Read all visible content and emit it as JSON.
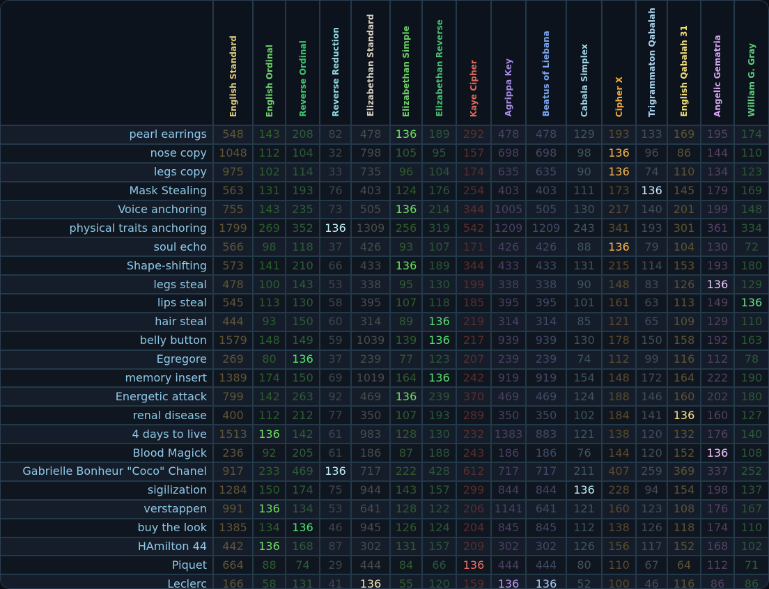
{
  "columns": [
    {
      "label": "English Standard",
      "color": "#d8c77a"
    },
    {
      "label": "English Ordinal",
      "color": "#6fd06a"
    },
    {
      "label": "Reverse Ordinal",
      "color": "#3fc56d"
    },
    {
      "label": "Reverse Reduction",
      "color": "#8fd8e3"
    },
    {
      "label": "Elizabethan Standard",
      "color": "#d9d2c2"
    },
    {
      "label": "Elizabethan Simple",
      "color": "#6ad066"
    },
    {
      "label": "Elizabethan Reverse",
      "color": "#48c070"
    },
    {
      "label": "Kaye Cipher",
      "color": "#e06a5c"
    },
    {
      "label": "Agrippa Key",
      "color": "#a58ae6"
    },
    {
      "label": "Beatus of Liebana",
      "color": "#7aa6f0"
    },
    {
      "label": "Cabala Simplex",
      "color": "#9fd3e3"
    },
    {
      "label": "Cipher X",
      "color": "#f0a93a"
    },
    {
      "label": "Trigrammaton Qabalah",
      "color": "#a8d3ee"
    },
    {
      "label": "English Qabalah 31",
      "color": "#f0dc7a"
    },
    {
      "label": "Angelic Gematria",
      "color": "#d4a3f0"
    },
    {
      "label": "William G. Gray",
      "color": "#5ed07a"
    }
  ],
  "dim_colors": [
    "#5f5536",
    "#2d5d2e",
    "#2f5b39",
    "#3b4650",
    "#4a4b4c",
    "#315b2d",
    "#2b5638",
    "#5a2d2d",
    "#4a3f62",
    "#414a66",
    "#3f555d",
    "#5d4a2c",
    "#414d59",
    "#5c5332",
    "#534162",
    "#2d5836"
  ],
  "highlight_colors": [
    "#d8c77a",
    "#6ee05f",
    "#4ee66c",
    "#bdeff5",
    "#f5e6b5",
    "#6ee05f",
    "#56e071",
    "#f06e62",
    "#c29bf7",
    "#b1cdfa",
    "#c0f2fa",
    "#ffb648",
    "#c6ecff",
    "#ffe58f",
    "#f0c4ff",
    "#6ee58a"
  ],
  "rows": [
    {
      "label": "pearl earrings",
      "values": [
        "548",
        "143",
        "208",
        "82",
        "478",
        "136",
        "189",
        "292",
        "478",
        "478",
        "129",
        "193",
        "133",
        "169",
        "195",
        "174"
      ]
    },
    {
      "label": "nose copy",
      "values": [
        "1048",
        "112",
        "104",
        "32",
        "798",
        "105",
        "95",
        "157",
        "698",
        "698",
        "98",
        "136",
        "96",
        "86",
        "144",
        "110"
      ]
    },
    {
      "label": "legs copy",
      "values": [
        "975",
        "102",
        "114",
        "33",
        "735",
        "96",
        "104",
        "174",
        "635",
        "635",
        "90",
        "136",
        "74",
        "110",
        "134",
        "123"
      ]
    },
    {
      "label": "Mask Stealing",
      "values": [
        "563",
        "131",
        "193",
        "76",
        "403",
        "124",
        "176",
        "254",
        "403",
        "403",
        "111",
        "173",
        "136",
        "145",
        "179",
        "169"
      ]
    },
    {
      "label": "Voice anchoring",
      "values": [
        "755",
        "143",
        "235",
        "73",
        "505",
        "136",
        "214",
        "344",
        "1005",
        "505",
        "130",
        "217",
        "140",
        "201",
        "199",
        "148"
      ]
    },
    {
      "label": "physical traits anchoring",
      "values": [
        "1799",
        "269",
        "352",
        "136",
        "1309",
        "256",
        "319",
        "542",
        "1209",
        "1209",
        "243",
        "341",
        "193",
        "301",
        "361",
        "334"
      ]
    },
    {
      "label": "soul echo",
      "values": [
        "566",
        "98",
        "118",
        "37",
        "426",
        "93",
        "107",
        "171",
        "426",
        "426",
        "88",
        "136",
        "79",
        "104",
        "130",
        "72"
      ]
    },
    {
      "label": "Shape-shifting",
      "values": [
        "573",
        "141",
        "210",
        "66",
        "433",
        "136",
        "189",
        "344",
        "433",
        "433",
        "131",
        "215",
        "114",
        "153",
        "193",
        "180"
      ]
    },
    {
      "label": "legs steal",
      "values": [
        "478",
        "100",
        "143",
        "53",
        "338",
        "95",
        "130",
        "199",
        "338",
        "338",
        "90",
        "148",
        "83",
        "126",
        "136",
        "129"
      ]
    },
    {
      "label": "lips steal",
      "values": [
        "545",
        "113",
        "130",
        "58",
        "395",
        "107",
        "118",
        "185",
        "395",
        "395",
        "101",
        "161",
        "63",
        "113",
        "149",
        "136"
      ]
    },
    {
      "label": "hair steal",
      "values": [
        "444",
        "93",
        "150",
        "60",
        "314",
        "89",
        "136",
        "219",
        "314",
        "314",
        "85",
        "121",
        "65",
        "109",
        "129",
        "110"
      ]
    },
    {
      "label": "belly button",
      "values": [
        "1579",
        "148",
        "149",
        "59",
        "1039",
        "139",
        "136",
        "217",
        "939",
        "939",
        "130",
        "178",
        "150",
        "158",
        "192",
        "163"
      ]
    },
    {
      "label": "Egregore",
      "values": [
        "269",
        "80",
        "136",
        "37",
        "239",
        "77",
        "123",
        "207",
        "239",
        "239",
        "74",
        "112",
        "99",
        "116",
        "112",
        "78"
      ]
    },
    {
      "label": "memory insert",
      "values": [
        "1389",
        "174",
        "150",
        "69",
        "1019",
        "164",
        "136",
        "242",
        "919",
        "919",
        "154",
        "148",
        "172",
        "164",
        "222",
        "190"
      ]
    },
    {
      "label": "Energetic attack",
      "values": [
        "799",
        "142",
        "263",
        "92",
        "469",
        "136",
        "239",
        "370",
        "469",
        "469",
        "124",
        "188",
        "146",
        "160",
        "202",
        "180"
      ]
    },
    {
      "label": "renal disease",
      "values": [
        "400",
        "112",
        "212",
        "77",
        "350",
        "107",
        "193",
        "289",
        "350",
        "350",
        "102",
        "184",
        "141",
        "136",
        "160",
        "127"
      ]
    },
    {
      "label": "4 days to live",
      "values": [
        "1513",
        "136",
        "142",
        "61",
        "983",
        "128",
        "130",
        "232",
        "1383",
        "883",
        "121",
        "138",
        "120",
        "132",
        "176",
        "140"
      ]
    },
    {
      "label": "Blood Magick",
      "values": [
        "236",
        "92",
        "205",
        "61",
        "186",
        "87",
        "188",
        "243",
        "186",
        "186",
        "76",
        "144",
        "120",
        "152",
        "136",
        "108"
      ]
    },
    {
      "label": "Gabrielle Bonheur \"Coco\" Chanel",
      "values": [
        "917",
        "233",
        "469",
        "136",
        "717",
        "222",
        "428",
        "612",
        "717",
        "717",
        "211",
        "407",
        "259",
        "369",
        "337",
        "252"
      ]
    },
    {
      "label": "sigilization",
      "values": [
        "1284",
        "150",
        "174",
        "75",
        "944",
        "143",
        "157",
        "299",
        "844",
        "844",
        "136",
        "228",
        "94",
        "154",
        "198",
        "137"
      ]
    },
    {
      "label": "verstappen",
      "values": [
        "991",
        "136",
        "134",
        "53",
        "641",
        "128",
        "122",
        "206",
        "1141",
        "641",
        "121",
        "160",
        "123",
        "108",
        "176",
        "167"
      ]
    },
    {
      "label": "buy the look",
      "values": [
        "1385",
        "134",
        "136",
        "46",
        "945",
        "126",
        "124",
        "204",
        "845",
        "845",
        "112",
        "138",
        "126",
        "118",
        "174",
        "110"
      ]
    },
    {
      "label": "HAmilton 44",
      "values": [
        "442",
        "136",
        "168",
        "87",
        "302",
        "131",
        "157",
        "209",
        "302",
        "302",
        "126",
        "156",
        "117",
        "152",
        "168",
        "102"
      ]
    },
    {
      "label": "Piquet",
      "values": [
        "664",
        "88",
        "74",
        "29",
        "444",
        "84",
        "66",
        "136",
        "444",
        "444",
        "80",
        "110",
        "67",
        "64",
        "112",
        "71"
      ]
    },
    {
      "label": "Leclerc",
      "values": [
        "166",
        "58",
        "131",
        "41",
        "136",
        "55",
        "120",
        "159",
        "136",
        "136",
        "52",
        "100",
        "46",
        "116",
        "86",
        "86"
      ]
    }
  ]
}
